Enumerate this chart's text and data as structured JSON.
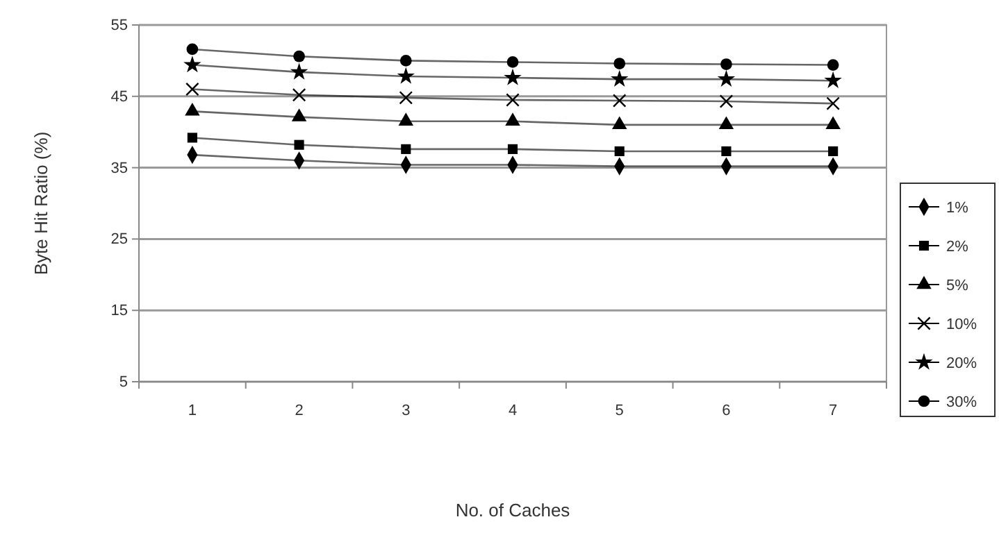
{
  "chart_data": {
    "type": "line",
    "xlabel": "No. of Caches",
    "ylabel": "Byte Hit Ratio (%)",
    "categories": [
      "1",
      "2",
      "3",
      "4",
      "5",
      "6",
      "7"
    ],
    "ylim": [
      5,
      55
    ],
    "yticks": [
      5,
      15,
      25,
      35,
      45,
      55
    ],
    "grid": "y",
    "legend": "right",
    "series": [
      {
        "name": "1%",
        "color": "#000000",
        "marker": "diamond",
        "values": [
          36.8,
          36.0,
          35.4,
          35.4,
          35.2,
          35.2,
          35.2
        ]
      },
      {
        "name": "2%",
        "color": "#000000",
        "marker": "square",
        "values": [
          39.2,
          38.2,
          37.6,
          37.6,
          37.3,
          37.3,
          37.3
        ]
      },
      {
        "name": "5%",
        "color": "#000000",
        "marker": "triangle",
        "values": [
          42.9,
          42.1,
          41.5,
          41.5,
          41.0,
          41.0,
          41.0
        ]
      },
      {
        "name": "10%",
        "color": "#000000",
        "marker": "cross",
        "values": [
          46.0,
          45.2,
          44.8,
          44.5,
          44.4,
          44.3,
          44.0
        ]
      },
      {
        "name": "20%",
        "color": "#000000",
        "marker": "star",
        "values": [
          49.4,
          48.4,
          47.8,
          47.6,
          47.4,
          47.4,
          47.2
        ]
      },
      {
        "name": "30%",
        "color": "#000000",
        "marker": "circle",
        "values": [
          51.6,
          50.6,
          50.0,
          49.8,
          49.6,
          49.5,
          49.4
        ]
      }
    ]
  }
}
